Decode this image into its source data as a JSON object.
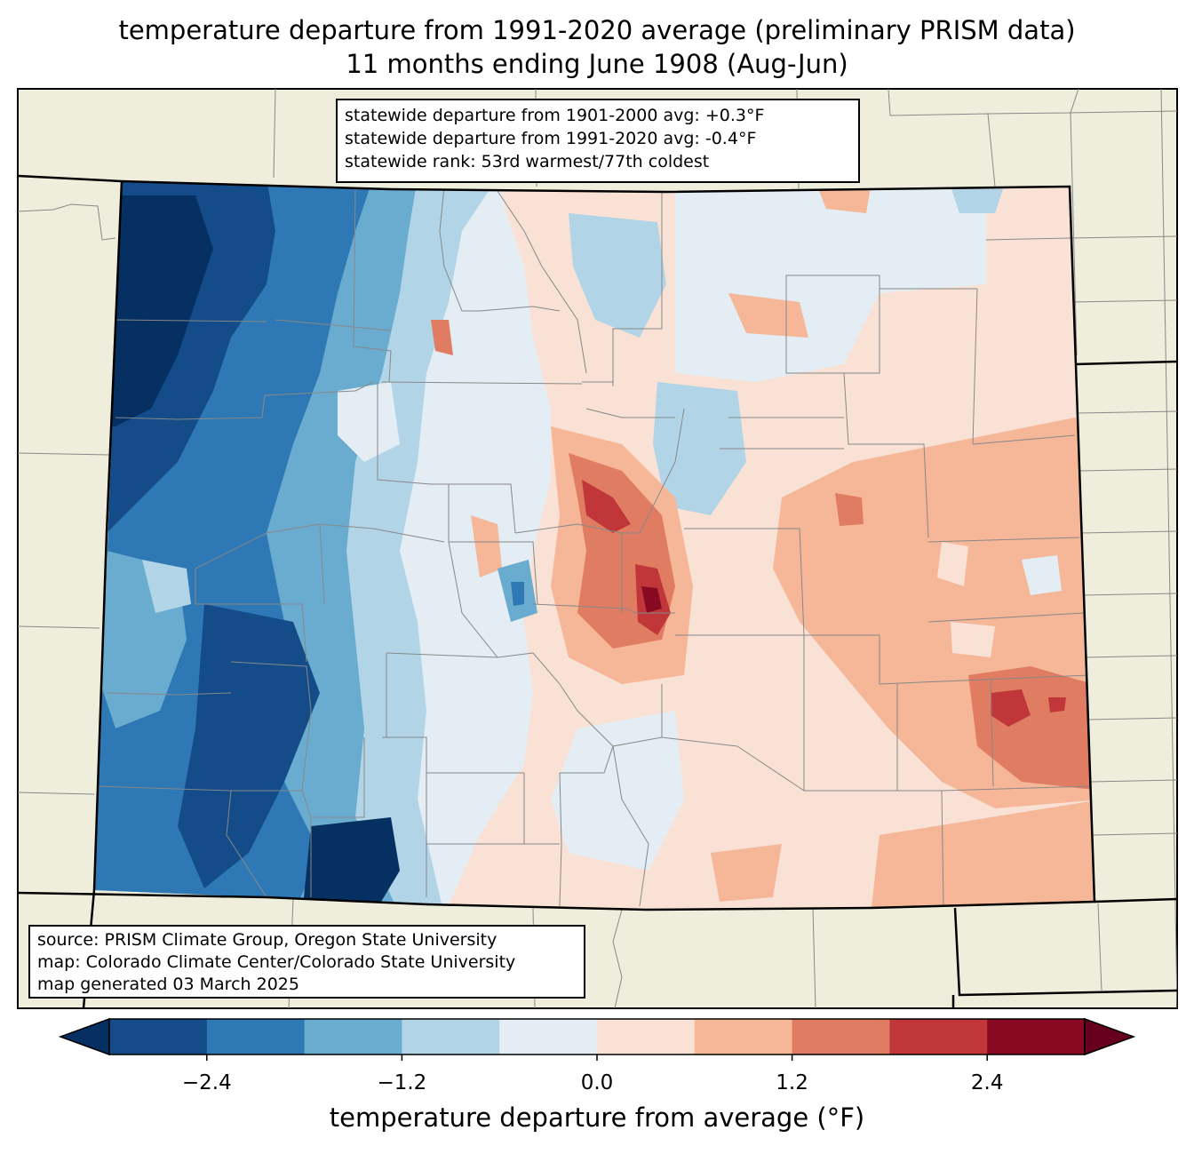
{
  "title": {
    "line1": "temperature departure from 1991-2020 average (preliminary PRISM data)",
    "line2": "11 months ending June 1908 (Aug-Jun)"
  },
  "stats": {
    "line1": "statewide departure from 1901-2000 avg: +0.3°F",
    "line2": "statewide departure from 1991-2020 avg: -0.4°F",
    "line3": "statewide rank: 53rd warmest/77th coldest"
  },
  "source": {
    "line1": "source: PRISM Climate Group, Oregon State University",
    "line2": "map: Colorado Climate Center/Colorado State University",
    "line3": "map generated 03 March 2025"
  },
  "colorbar": {
    "label": "temperature departure from average (°F)",
    "ticks": [
      "−2.4",
      "−1.2",
      "0.0",
      "1.2",
      "2.4"
    ],
    "tick_values": [
      -2.4,
      -1.2,
      0.0,
      1.2,
      2.4
    ],
    "range": [
      -3.0,
      3.0
    ],
    "step": 0.6,
    "colors": [
      "#053061",
      "#134c89",
      "#2e79b5",
      "#6aacd0",
      "#b1d5e7",
      "#e3edf3",
      "#f9e2d5",
      "#f6b698",
      "#e07c62",
      "#c13639",
      "#880a22",
      "#67001f"
    ],
    "land_color": "#efeedc"
  }
}
